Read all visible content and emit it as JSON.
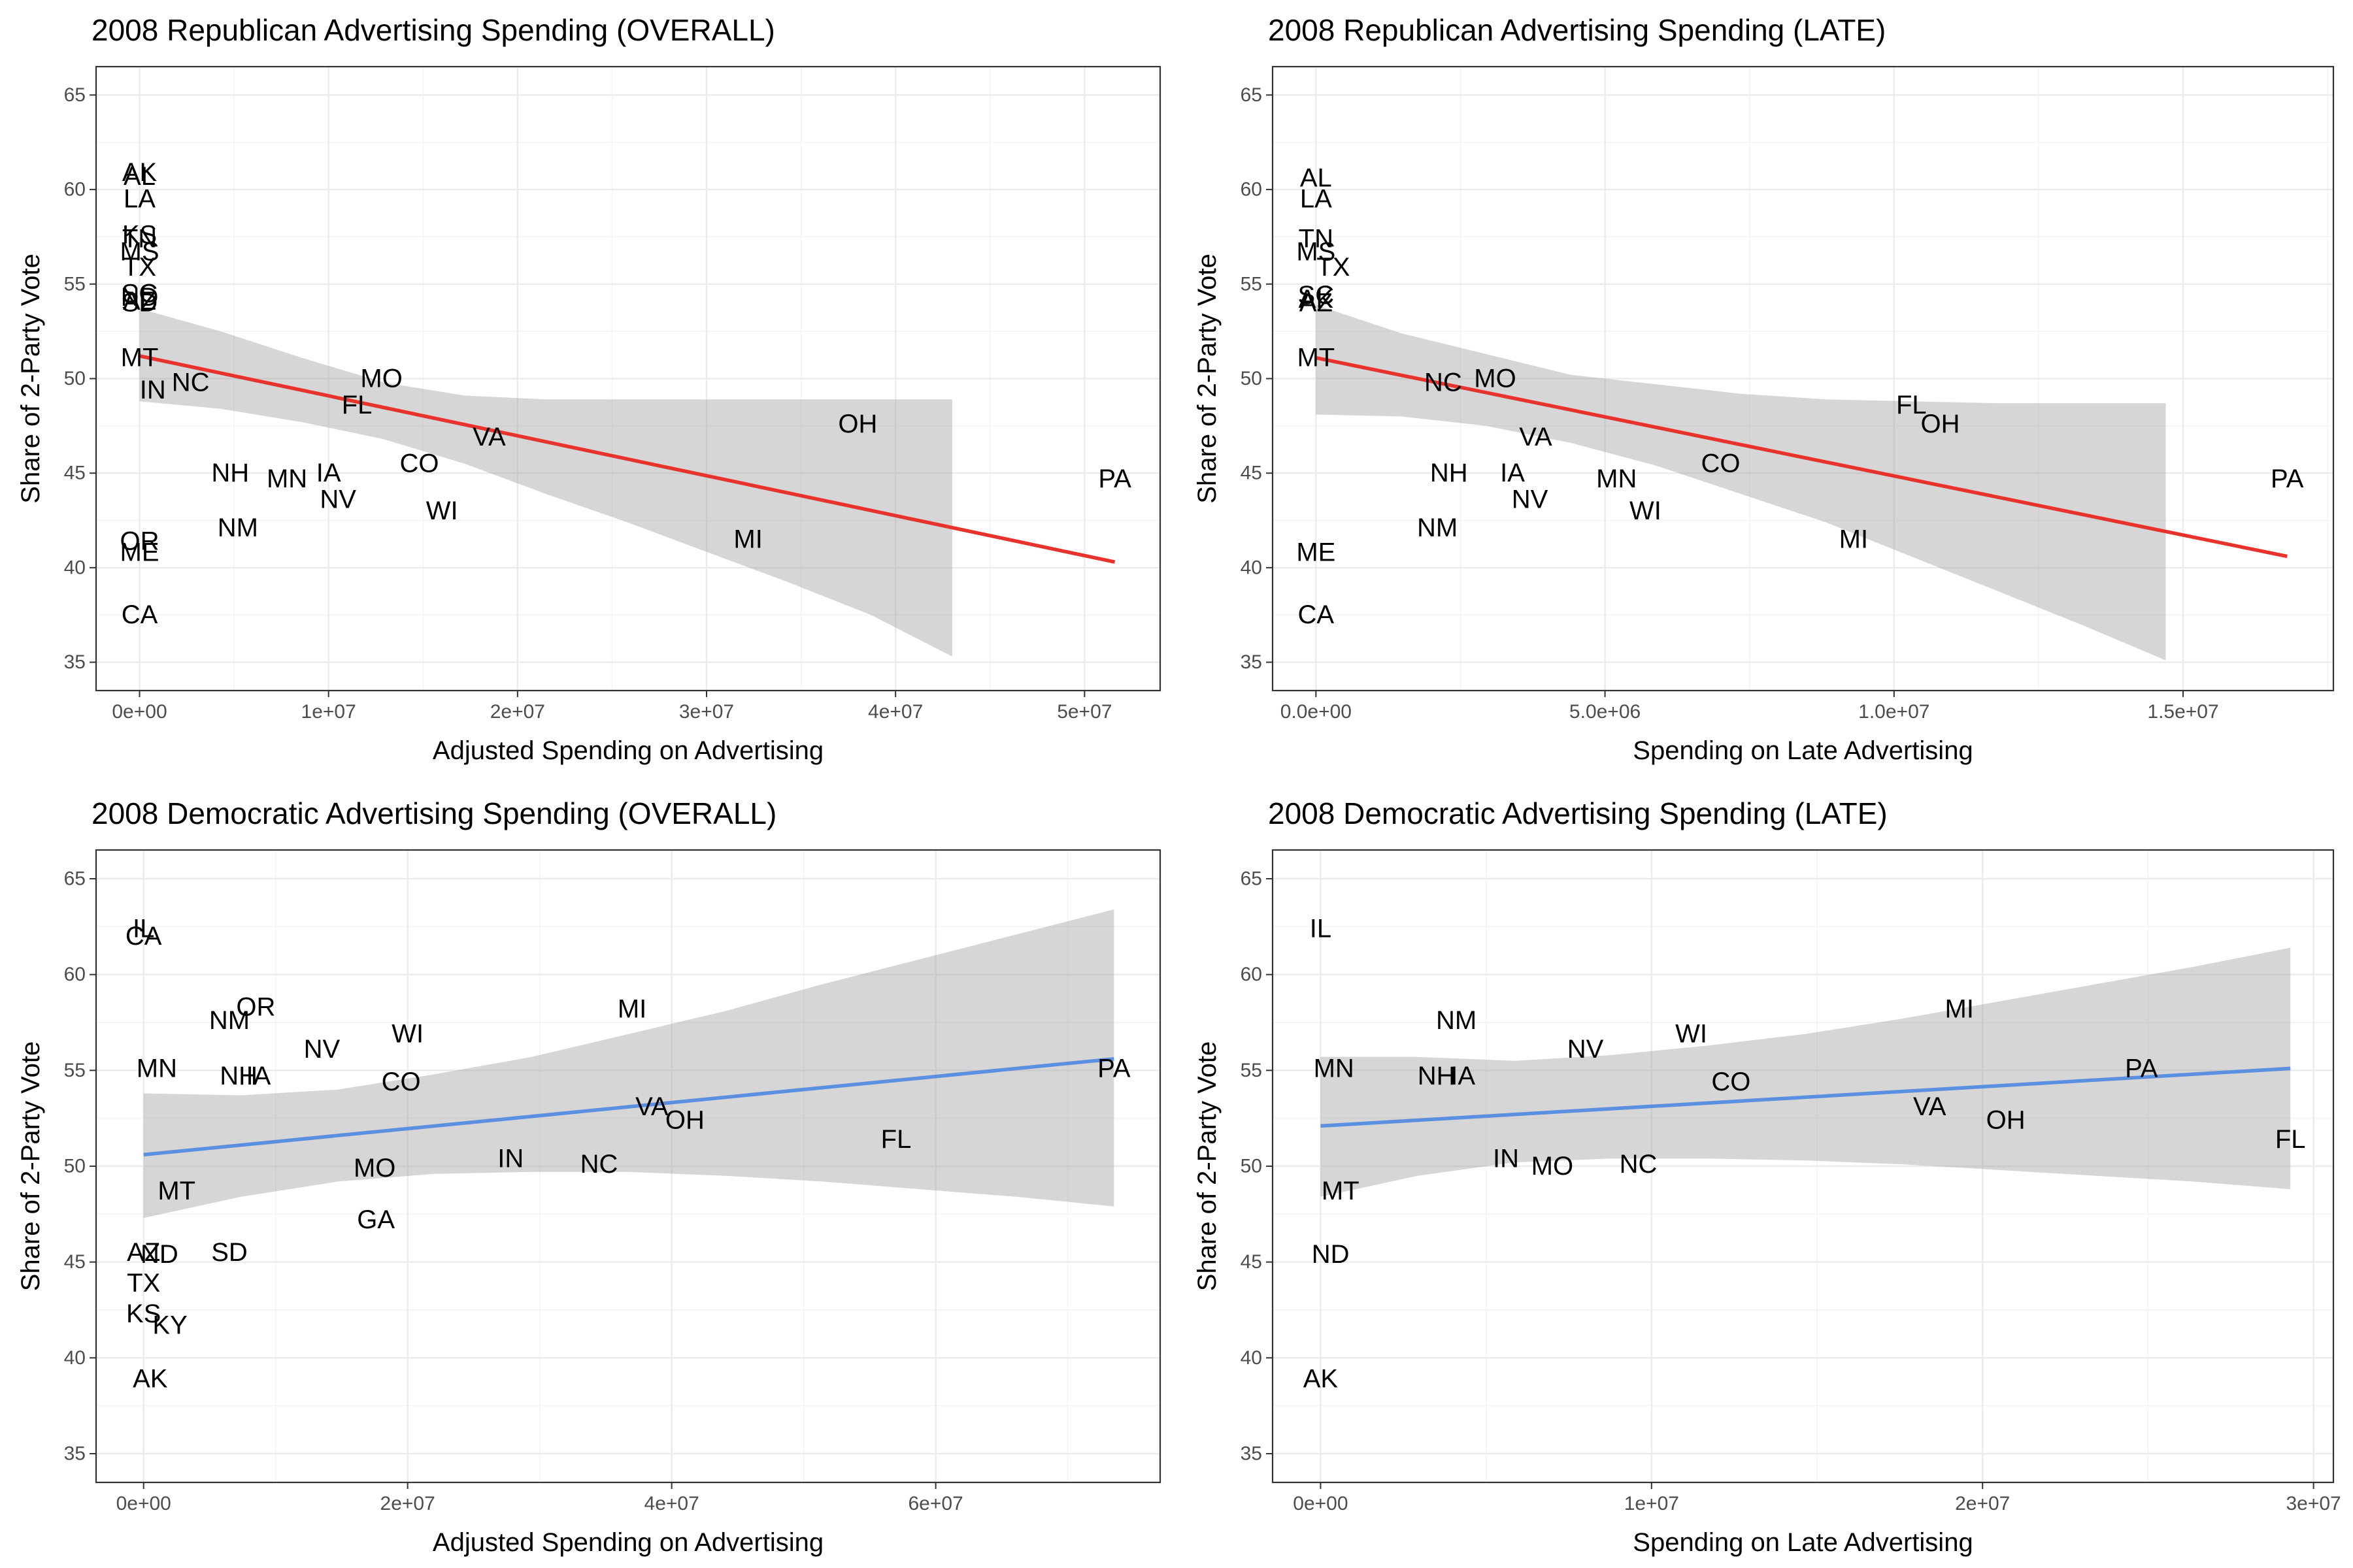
{
  "chart_data": [
    {
      "type": "scatter",
      "title": "2008 Republican Advertising Spending (OVERALL)",
      "xlabel": "Adjusted Spending on Advertising",
      "ylabel": "Share of 2-Party Vote",
      "xlim": [
        -2300000,
        54000000
      ],
      "ylim": [
        33.5,
        66.5
      ],
      "xticks": [
        0,
        10000000,
        20000000,
        30000000,
        40000000,
        50000000
      ],
      "xtick_labels": [
        "0e+00",
        "1e+07",
        "2e+07",
        "3e+07",
        "4e+07",
        "5e+07"
      ],
      "yticks": [
        35,
        40,
        45,
        50,
        55,
        60,
        65
      ],
      "ytick_labels": [
        "35",
        "40",
        "45",
        "50",
        "55",
        "60",
        "65"
      ],
      "fit_color": "#e8322c",
      "fit": {
        "x": [
          0,
          51600000
        ],
        "y": [
          51.2,
          40.3
        ]
      },
      "ribbon": {
        "x": [
          0,
          4300000,
          8600000,
          12900000,
          17200000,
          21500000,
          25800000,
          30100000,
          34400000,
          38700000,
          43000000
        ],
        "lower": [
          48.8,
          48.4,
          47.7,
          46.8,
          45.5,
          43.9,
          42.4,
          40.8,
          39.2,
          37.5,
          35.3
        ],
        "upper": [
          53.7,
          52.5,
          51.1,
          49.8,
          49.1,
          48.9,
          48.9,
          48.9,
          48.9,
          48.9,
          48.9
        ]
      },
      "points": [
        {
          "label": "AK",
          "x": 0,
          "y": 60.9
        },
        {
          "label": "AL",
          "x": 0,
          "y": 60.7
        },
        {
          "label": "LA",
          "x": 0,
          "y": 59.5
        },
        {
          "label": "KS",
          "x": 0,
          "y": 57.6
        },
        {
          "label": "TN",
          "x": 0,
          "y": 57.4
        },
        {
          "label": "MS",
          "x": 0,
          "y": 56.7
        },
        {
          "label": "TX",
          "x": 0,
          "y": 55.9
        },
        {
          "label": "SC",
          "x": 0,
          "y": 54.5
        },
        {
          "label": "ND",
          "x": 0,
          "y": 54.3
        },
        {
          "label": "AZ",
          "x": 0,
          "y": 54.1
        },
        {
          "label": "SD",
          "x": 0,
          "y": 54.0
        },
        {
          "label": "MT",
          "x": 0,
          "y": 51.1
        },
        {
          "label": "IN",
          "x": 700000,
          "y": 49.4
        },
        {
          "label": "NC",
          "x": 2700000,
          "y": 49.8
        },
        {
          "label": "MO",
          "x": 12800000,
          "y": 50.0
        },
        {
          "label": "FL",
          "x": 11500000,
          "y": 48.6
        },
        {
          "label": "VA",
          "x": 18500000,
          "y": 46.9
        },
        {
          "label": "OH",
          "x": 38000000,
          "y": 47.6
        },
        {
          "label": "CO",
          "x": 14800000,
          "y": 45.5
        },
        {
          "label": "NH",
          "x": 4800000,
          "y": 45.0
        },
        {
          "label": "MN",
          "x": 7800000,
          "y": 44.7
        },
        {
          "label": "IA",
          "x": 10000000,
          "y": 45.0
        },
        {
          "label": "NV",
          "x": 10500000,
          "y": 43.6
        },
        {
          "label": "WI",
          "x": 16000000,
          "y": 43.0
        },
        {
          "label": "PA",
          "x": 51600000,
          "y": 44.7
        },
        {
          "label": "NM",
          "x": 5200000,
          "y": 42.1
        },
        {
          "label": "OR",
          "x": 0,
          "y": 41.4
        },
        {
          "label": "ME",
          "x": 0,
          "y": 40.8
        },
        {
          "label": "MI",
          "x": 32200000,
          "y": 41.5
        },
        {
          "label": "CA",
          "x": 0,
          "y": 37.5
        }
      ]
    },
    {
      "type": "scatter",
      "title": "2008 Republican Advertising Spending (LATE)",
      "xlabel": "Spending on Late Advertising",
      "ylabel": "Share of 2-Party Vote",
      "xlim": [
        -750000,
        17600000
      ],
      "ylim": [
        33.5,
        66.5
      ],
      "xticks": [
        0,
        5000000,
        10000000,
        15000000
      ],
      "xtick_labels": [
        "0.0e+00",
        "5.0e+06",
        "1.0e+07",
        "1.5e+07"
      ],
      "yticks": [
        35,
        40,
        45,
        50,
        55,
        60,
        65
      ],
      "ytick_labels": [
        "35",
        "40",
        "45",
        "50",
        "55",
        "60",
        "65"
      ],
      "fit_color": "#e8322c",
      "fit": {
        "x": [
          0,
          16800000
        ],
        "y": [
          51.1,
          40.6
        ]
      },
      "ribbon": {
        "x": [
          0,
          1470000,
          2940000,
          4410000,
          5880000,
          7350000,
          8820000,
          10290000,
          11760000,
          13230000,
          14700000
        ],
        "lower": [
          48.1,
          48.0,
          47.5,
          46.6,
          45.4,
          43.9,
          42.4,
          40.6,
          38.8,
          37.0,
          35.1
        ],
        "upper": [
          53.9,
          52.4,
          51.3,
          50.2,
          49.7,
          49.2,
          48.9,
          48.8,
          48.7,
          48.7,
          48.7
        ]
      },
      "points": [
        {
          "label": "AL",
          "x": 0,
          "y": 60.6
        },
        {
          "label": "LA",
          "x": 0,
          "y": 59.5
        },
        {
          "label": "TN",
          "x": 0,
          "y": 57.4
        },
        {
          "label": "MS",
          "x": 0,
          "y": 56.7
        },
        {
          "label": "TX",
          "x": 300000,
          "y": 55.9
        },
        {
          "label": "SC",
          "x": 0,
          "y": 54.4
        },
        {
          "label": "AK",
          "x": 0,
          "y": 54.2
        },
        {
          "label": "AZ",
          "x": 0,
          "y": 54.0
        },
        {
          "label": "MT",
          "x": 0,
          "y": 51.1
        },
        {
          "label": "NC",
          "x": 2200000,
          "y": 49.8
        },
        {
          "label": "MO",
          "x": 3100000,
          "y": 50.0
        },
        {
          "label": "VA",
          "x": 3800000,
          "y": 46.9
        },
        {
          "label": "FL",
          "x": 10300000,
          "y": 48.6
        },
        {
          "label": "OH",
          "x": 10800000,
          "y": 47.6
        },
        {
          "label": "CO",
          "x": 7000000,
          "y": 45.5
        },
        {
          "label": "NH",
          "x": 2300000,
          "y": 45.0
        },
        {
          "label": "IA",
          "x": 3400000,
          "y": 45.0
        },
        {
          "label": "MN",
          "x": 5200000,
          "y": 44.7
        },
        {
          "label": "NV",
          "x": 3700000,
          "y": 43.6
        },
        {
          "label": "WI",
          "x": 5700000,
          "y": 43.0
        },
        {
          "label": "PA",
          "x": 16800000,
          "y": 44.7
        },
        {
          "label": "NM",
          "x": 2100000,
          "y": 42.1
        },
        {
          "label": "MI",
          "x": 9300000,
          "y": 41.5
        },
        {
          "label": "ME",
          "x": 0,
          "y": 40.8
        },
        {
          "label": "CA",
          "x": 0,
          "y": 37.5
        }
      ]
    },
    {
      "type": "scatter",
      "title": "2008 Democratic Advertising Spending (OVERALL)",
      "xlabel": "Adjusted Spending on Advertising",
      "ylabel": "Share of 2-Party Vote",
      "xlim": [
        -3600000,
        77000000
      ],
      "ylim": [
        33.5,
        66.5
      ],
      "xticks": [
        0,
        20000000,
        40000000,
        60000000
      ],
      "xtick_labels": [
        "0e+00",
        "2e+07",
        "4e+07",
        "6e+07"
      ],
      "yticks": [
        35,
        40,
        45,
        50,
        55,
        60,
        65
      ],
      "ytick_labels": [
        "35",
        "40",
        "45",
        "50",
        "55",
        "60",
        "65"
      ],
      "fit_color": "#5b8fe0",
      "fit": {
        "x": [
          0,
          73500000
        ],
        "y": [
          50.6,
          55.6
        ]
      },
      "ribbon": {
        "x": [
          0,
          7350000,
          14700000,
          22050000,
          29400000,
          36750000,
          44100000,
          51450000,
          58800000,
          66150000,
          73500000
        ],
        "lower": [
          47.3,
          48.4,
          49.2,
          49.6,
          49.7,
          49.7,
          49.5,
          49.2,
          48.8,
          48.4,
          47.9
        ],
        "upper": [
          53.8,
          53.7,
          54.0,
          54.8,
          55.7,
          56.9,
          58.1,
          59.5,
          60.8,
          62.1,
          63.4
        ]
      },
      "points": [
        {
          "label": "IL",
          "x": 0,
          "y": 62.4
        },
        {
          "label": "CA",
          "x": 0,
          "y": 62.0
        },
        {
          "label": "OR",
          "x": 8500000,
          "y": 58.3
        },
        {
          "label": "NM",
          "x": 6500000,
          "y": 57.6
        },
        {
          "label": "MI",
          "x": 37000000,
          "y": 58.2
        },
        {
          "label": "NV",
          "x": 13500000,
          "y": 56.1
        },
        {
          "label": "WI",
          "x": 20000000,
          "y": 56.9
        },
        {
          "label": "MN",
          "x": 1000000,
          "y": 55.1
        },
        {
          "label": "NH",
          "x": 7200000,
          "y": 54.7
        },
        {
          "label": "IA",
          "x": 8700000,
          "y": 54.7
        },
        {
          "label": "CO",
          "x": 19500000,
          "y": 54.4
        },
        {
          "label": "PA",
          "x": 73500000,
          "y": 55.1
        },
        {
          "label": "VA",
          "x": 38500000,
          "y": 53.1
        },
        {
          "label": "OH",
          "x": 41000000,
          "y": 52.4
        },
        {
          "label": "FL",
          "x": 57000000,
          "y": 51.4
        },
        {
          "label": "IN",
          "x": 27800000,
          "y": 50.4
        },
        {
          "label": "NC",
          "x": 34500000,
          "y": 50.1
        },
        {
          "label": "MO",
          "x": 17500000,
          "y": 49.9
        },
        {
          "label": "MT",
          "x": 2500000,
          "y": 48.7
        },
        {
          "label": "GA",
          "x": 17600000,
          "y": 47.2
        },
        {
          "label": "AZ",
          "x": 0,
          "y": 45.5
        },
        {
          "label": "ND",
          "x": 1200000,
          "y": 45.4
        },
        {
          "label": "SD",
          "x": 6500000,
          "y": 45.5
        },
        {
          "label": "TX",
          "x": 0,
          "y": 43.9
        },
        {
          "label": "KS",
          "x": 0,
          "y": 42.3
        },
        {
          "label": "KY",
          "x": 2000000,
          "y": 41.7
        },
        {
          "label": "AK",
          "x": 500000,
          "y": 38.9
        }
      ]
    },
    {
      "type": "scatter",
      "title": "2008 Democratic Advertising Spending (LATE)",
      "xlabel": "Spending on Late Advertising",
      "ylabel": "Share of 2-Party Vote",
      "xlim": [
        -1450000,
        30600000
      ],
      "ylim": [
        33.5,
        66.5
      ],
      "xticks": [
        0,
        10000000,
        20000000,
        30000000
      ],
      "xtick_labels": [
        "0e+00",
        "1e+07",
        "2e+07",
        "3e+07"
      ],
      "yticks": [
        35,
        40,
        45,
        50,
        55,
        60,
        65
      ],
      "ytick_labels": [
        "35",
        "40",
        "45",
        "50",
        "55",
        "60",
        "65"
      ],
      "fit_color": "#5b8fe0",
      "fit": {
        "x": [
          0,
          29300000
        ],
        "y": [
          52.1,
          55.1
        ]
      },
      "ribbon": {
        "x": [
          0,
          2930000,
          5860000,
          8790000,
          11720000,
          14650000,
          17580000,
          20510000,
          23440000,
          26370000,
          29300000
        ],
        "lower": [
          48.4,
          49.5,
          50.2,
          50.4,
          50.4,
          50.3,
          50.1,
          49.8,
          49.5,
          49.2,
          48.8
        ],
        "upper": [
          55.7,
          55.7,
          55.5,
          55.8,
          56.3,
          56.9,
          57.7,
          58.6,
          59.5,
          60.4,
          61.4
        ]
      },
      "points": [
        {
          "label": "IL",
          "x": 0,
          "y": 62.4
        },
        {
          "label": "MI",
          "x": 19300000,
          "y": 58.2
        },
        {
          "label": "NM",
          "x": 4100000,
          "y": 57.6
        },
        {
          "label": "WI",
          "x": 11200000,
          "y": 56.9
        },
        {
          "label": "NV",
          "x": 8000000,
          "y": 56.1
        },
        {
          "label": "MN",
          "x": 400000,
          "y": 55.1
        },
        {
          "label": "PA",
          "x": 24800000,
          "y": 55.1
        },
        {
          "label": "NH",
          "x": 3500000,
          "y": 54.7
        },
        {
          "label": "IA",
          "x": 4300000,
          "y": 54.7
        },
        {
          "label": "CO",
          "x": 12400000,
          "y": 54.4
        },
        {
          "label": "VA",
          "x": 18400000,
          "y": 53.1
        },
        {
          "label": "OH",
          "x": 20700000,
          "y": 52.4
        },
        {
          "label": "FL",
          "x": 29300000,
          "y": 51.4
        },
        {
          "label": "IN",
          "x": 5600000,
          "y": 50.4
        },
        {
          "label": "MO",
          "x": 7000000,
          "y": 50.0
        },
        {
          "label": "NC",
          "x": 9600000,
          "y": 50.1
        },
        {
          "label": "MT",
          "x": 600000,
          "y": 48.7
        },
        {
          "label": "ND",
          "x": 300000,
          "y": 45.4
        },
        {
          "label": "AK",
          "x": 0,
          "y": 38.9
        }
      ]
    }
  ]
}
